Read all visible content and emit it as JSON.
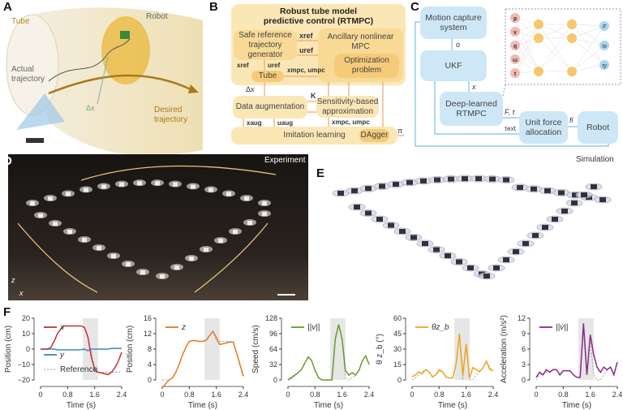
{
  "panels": {
    "A": {
      "label": "A",
      "tube": "Tube",
      "robot": "Robot",
      "actual": "Actual trajectory",
      "delta": "Δx",
      "desired": "Desired trajectory"
    },
    "B": {
      "label": "B",
      "title1": "Robust tube model",
      "title2": "predictive control (RTMPC)",
      "safe_ref": "Safe reference trajectory generator",
      "ancillary": "Ancillary nonlinear MPC",
      "optimization": "Optimization problem",
      "tube": "Tube",
      "data_aug": "Data augmentation",
      "sensitivity": "Sensitivity-based approximation",
      "imitation": "Imitation learning",
      "dagger": "DAgger",
      "x_ref": "xref",
      "u_ref": "uref",
      "x_mpc_u_mpc": "xmpc, umpc",
      "delta_x": "Δx",
      "K": "K",
      "x_aug": "xaug",
      "u_aug": "uaug",
      "pi": "π"
    },
    "C": {
      "label": "C",
      "motion_capture": "Motion capture system",
      "ukf": "UKF",
      "deep_rtmpc": "Deep-learned RTMPC",
      "unit_force": "Unit force allocation",
      "robot": "Robot",
      "o": "o",
      "x": "x",
      "F_tau": "F, τ",
      "tau_ext": "τext",
      "f_i": "fi",
      "nn_inputs": [
        "p",
        "v",
        "q",
        "ω",
        "t"
      ],
      "nn_outputs": [
        "F",
        "τx",
        "τy"
      ]
    },
    "D": {
      "label": "D",
      "title": "Experiment",
      "axis_z": "z",
      "axis_x": "x"
    },
    "E": {
      "label": "E",
      "title": "Simulation"
    },
    "F": {
      "label": "F"
    }
  },
  "colors": {
    "tube": "#f0d98c",
    "block_yellow": "#fbe6b5",
    "block_blue": "#cde7f6",
    "shade": "#e6e6e6"
  },
  "chart_data": [
    {
      "type": "line",
      "xlabel": "Time (s)",
      "ylabel": "Position (cm)",
      "xlim": [
        0,
        2.4
      ],
      "ylim": [
        -20,
        20
      ],
      "xticks": [
        "0",
        "0.8",
        "1.6",
        "2.4"
      ],
      "yticks": [
        -20,
        -10,
        0,
        10,
        20
      ],
      "shaded": [
        1.25,
        1.7
      ],
      "x": [
        0,
        0.1,
        0.2,
        0.3,
        0.4,
        0.5,
        0.6,
        0.7,
        0.8,
        0.9,
        1.0,
        1.1,
        1.2,
        1.3,
        1.4,
        1.5,
        1.6,
        1.7,
        1.8,
        1.9,
        2.0,
        2.1,
        2.2,
        2.3,
        2.4
      ],
      "series": [
        {
          "name": "x",
          "color": "#c8302c",
          "values": [
            0,
            0,
            0,
            1,
            5,
            10,
            13,
            15,
            15,
            15,
            15,
            15,
            15,
            14,
            8,
            -5,
            -13,
            -15,
            -15.5,
            -16,
            -16.5,
            -15,
            -12,
            -8,
            -2
          ]
        },
        {
          "name": "y",
          "color": "#3a87c4",
          "values": [
            0,
            0,
            0,
            0,
            0,
            -0.5,
            -0.5,
            -0.5,
            -0.5,
            -0.5,
            -0.5,
            -0.5,
            -0.3,
            0,
            -1,
            0,
            0,
            0,
            0,
            0,
            0,
            0.5,
            0.5,
            0.5,
            0.5
          ]
        },
        {
          "name": "Reference",
          "color": "#999999",
          "dashed": true,
          "values": [
            0,
            0,
            0,
            0,
            0,
            -0.5,
            -0.5,
            -0.5,
            -0.5,
            -0.5,
            -0.5,
            -0.5,
            -0.5,
            -0.5,
            -0.5,
            -0.5,
            -15,
            -15,
            -15,
            -15,
            -15,
            -15,
            -15,
            -15,
            -15
          ]
        }
      ]
    },
    {
      "type": "line",
      "xlabel": "Time (s)",
      "ylabel": "Position (cm)",
      "xlim": [
        0,
        2.4
      ],
      "ylim": [
        0,
        16
      ],
      "xticks": [
        "0",
        "0.8",
        "1.6",
        "2.4"
      ],
      "yticks": [
        0,
        4,
        8,
        12,
        16
      ],
      "shaded": [
        1.25,
        1.7
      ],
      "x": [
        0,
        0.1,
        0.2,
        0.3,
        0.4,
        0.5,
        0.6,
        0.7,
        0.8,
        0.9,
        1.0,
        1.1,
        1.2,
        1.3,
        1.4,
        1.5,
        1.6,
        1.7,
        1.8,
        1.9,
        2.0,
        2.1,
        2.2,
        2.3,
        2.4
      ],
      "series": [
        {
          "name": "z",
          "color": "#e07a1f",
          "values": [
            -2,
            -1,
            0,
            0.5,
            2,
            4,
            6.5,
            8.5,
            10,
            10.2,
            10.2,
            10,
            10,
            10.3,
            11.5,
            12.6,
            11,
            9.2,
            9.4,
            9.6,
            9.8,
            9.8,
            7,
            4,
            1
          ]
        },
        {
          "name": "Reference",
          "color": "#999999",
          "dashed": true,
          "values": [
            0,
            0,
            0,
            0.5,
            2,
            4,
            6.5,
            8.5,
            10,
            10.2,
            10.2,
            10,
            10,
            10.3,
            11.5,
            12.8,
            10.2,
            10,
            10,
            10,
            10,
            9.8,
            7,
            4,
            1
          ]
        }
      ]
    },
    {
      "type": "line",
      "xlabel": "Time (s)",
      "ylabel": "Speed (cm/s)",
      "xlim": [
        0,
        2.4
      ],
      "ylim": [
        0,
        128
      ],
      "xticks": [
        "0",
        "0.8",
        "1.6",
        "2.4"
      ],
      "yticks": [
        0,
        32,
        64,
        96,
        128
      ],
      "shaded": [
        1.25,
        1.7
      ],
      "x": [
        0,
        0.1,
        0.2,
        0.3,
        0.4,
        0.5,
        0.6,
        0.7,
        0.8,
        0.9,
        1.0,
        1.1,
        1.2,
        1.3,
        1.4,
        1.5,
        1.6,
        1.7,
        1.8,
        1.9,
        2.0,
        2.1,
        2.2,
        2.3,
        2.4
      ],
      "series": [
        {
          "name": "||v||",
          "color": "#6a9a2a",
          "values": [
            0,
            5,
            10,
            15,
            22,
            35,
            48,
            40,
            20,
            5,
            0,
            0,
            0,
            0,
            85,
            115,
            85,
            20,
            10,
            15,
            10,
            20,
            40,
            50,
            32
          ]
        },
        {
          "name": "Reference",
          "color": "#999999",
          "dashed": true,
          "values": [
            0,
            2,
            8,
            15,
            22,
            35,
            48,
            40,
            20,
            5,
            0,
            0,
            0,
            0,
            85,
            115,
            85,
            5,
            0,
            5,
            10,
            20,
            40,
            50,
            32
          ]
        }
      ]
    },
    {
      "type": "line",
      "xlabel": "Time (s)",
      "ylabel": "θ z_b (°)",
      "xlim": [
        0,
        2.4
      ],
      "ylim": [
        0,
        60
      ],
      "xticks": [
        "0",
        "0.8",
        "1.6",
        "2.4"
      ],
      "yticks": [
        0,
        15,
        30,
        45,
        60
      ],
      "shaded": [
        1.25,
        1.7
      ],
      "x": [
        0,
        0.1,
        0.2,
        0.3,
        0.4,
        0.5,
        0.6,
        0.7,
        0.8,
        0.9,
        1.0,
        1.1,
        1.2,
        1.3,
        1.4,
        1.5,
        1.6,
        1.7,
        1.8,
        1.9,
        2.0,
        2.1,
        2.2,
        2.3,
        2.4
      ],
      "series": [
        {
          "name": "θz_b",
          "color": "#f0a51c",
          "values": [
            3,
            5,
            8,
            6,
            10,
            8,
            3,
            5,
            10,
            8,
            3,
            2,
            2,
            15,
            45,
            5,
            35,
            2,
            12,
            10,
            8,
            12,
            18,
            10,
            9
          ]
        },
        {
          "name": "Reference",
          "color": "#999999",
          "dashed": true,
          "values": [
            0,
            2,
            5,
            8,
            10,
            8,
            3,
            5,
            8,
            8,
            3,
            2,
            2,
            15,
            43,
            0,
            33,
            0,
            0,
            5,
            8,
            12,
            19,
            12,
            9
          ]
        }
      ]
    },
    {
      "type": "line",
      "xlabel": "Time (s)",
      "ylabel": "Acceleration (m/s²)",
      "xlim": [
        0,
        2.4
      ],
      "ylim": [
        0,
        12
      ],
      "xticks": [
        "0",
        "0.8",
        "1.6",
        "2.4"
      ],
      "yticks": [
        0,
        3,
        6,
        9,
        12
      ],
      "shaded": [
        1.25,
        1.7
      ],
      "x": [
        0,
        0.1,
        0.2,
        0.3,
        0.4,
        0.5,
        0.6,
        0.7,
        0.8,
        0.9,
        1.0,
        1.1,
        1.2,
        1.3,
        1.4,
        1.5,
        1.6,
        1.7,
        1.8,
        1.9,
        2.0,
        2.1,
        2.2,
        2.3,
        2.4
      ],
      "series": [
        {
          "name": "||v̇||",
          "color": "#8b2a8b",
          "values": [
            0.5,
            1.5,
            1,
            2,
            1.5,
            2,
            2,
            1,
            1.8,
            1.8,
            1.8,
            1,
            0.5,
            0.5,
            11,
            1,
            8.8,
            5,
            2.5,
            1.5,
            2.5,
            2,
            2.5,
            1,
            3.5
          ]
        },
        {
          "name": "Reference",
          "color": "#999999",
          "dashed": true,
          "values": [
            0,
            1,
            1,
            1.5,
            1.5,
            2,
            2,
            1,
            1.8,
            1.8,
            1.8,
            1,
            0.5,
            0.5,
            10,
            1,
            8,
            1,
            0,
            0,
            1,
            2,
            2.5,
            1,
            3.5
          ]
        }
      ]
    }
  ]
}
